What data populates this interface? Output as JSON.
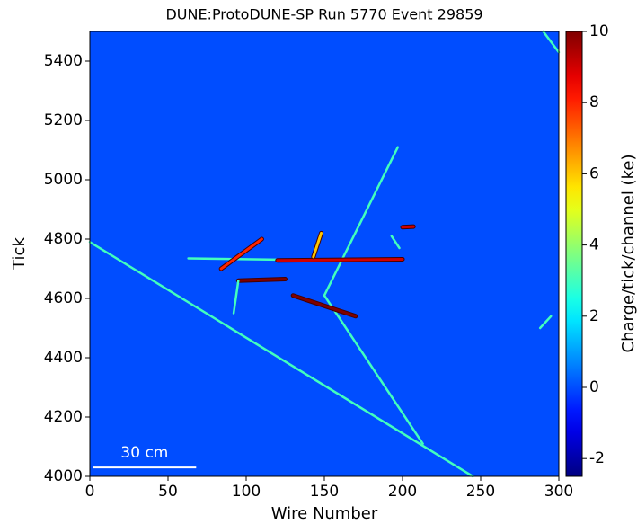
{
  "chart_data": {
    "type": "heatmap",
    "title": "DUNE:ProtoDUNE-SP Run 5770 Event 29859",
    "x_label": "Wire Number",
    "y_label": "Tick",
    "colorbar_label": "Charge/tick/channel (ke)",
    "xlim": [
      0,
      300
    ],
    "xticks": [
      0,
      50,
      100,
      150,
      200,
      250,
      300
    ],
    "ylim": [
      4000,
      5500
    ],
    "yticks": [
      4000,
      4200,
      4400,
      4600,
      4800,
      5000,
      5200,
      5400
    ],
    "clim": [
      -2.5,
      10
    ],
    "cticks": [
      -2,
      0,
      2,
      4,
      6,
      8,
      10
    ],
    "colormap": "jet",
    "background_value": 0,
    "scale_bar": {
      "label": "30 cm",
      "x": [
        2,
        68
      ],
      "y": 4030
    },
    "tracks": [
      {
        "x": [
          0,
          245
        ],
        "y": [
          4790,
          4000
        ],
        "charge": 3
      },
      {
        "x": [
          213,
          150
        ],
        "y": [
          4110,
          4610
        ],
        "charge": 3
      },
      {
        "x": [
          150,
          197
        ],
        "y": [
          4610,
          5110
        ],
        "charge": 3
      },
      {
        "x": [
          63,
          200
        ],
        "y": [
          4735,
          4725
        ],
        "charge": 3
      },
      {
        "x": [
          120,
          200
        ],
        "y": [
          4728,
          4732
        ],
        "charge": 9
      },
      {
        "x": [
          84,
          110
        ],
        "y": [
          4700,
          4800
        ],
        "charge": 8
      },
      {
        "x": [
          95,
          125
        ],
        "y": [
          4660,
          4665
        ],
        "charge": 10
      },
      {
        "x": [
          130,
          170
        ],
        "y": [
          4610,
          4540
        ],
        "charge": 10
      },
      {
        "x": [
          143,
          148
        ],
        "y": [
          4740,
          4820
        ],
        "charge": 6
      },
      {
        "x": [
          95,
          92
        ],
        "y": [
          4660,
          4550
        ],
        "charge": 3
      },
      {
        "x": [
          200,
          207
        ],
        "y": [
          4840,
          4842
        ],
        "charge": 9
      },
      {
        "x": [
          290,
          300
        ],
        "y": [
          5500,
          5430
        ],
        "charge": 3
      },
      {
        "x": [
          288,
          295
        ],
        "y": [
          4500,
          4540
        ],
        "charge": 3
      },
      {
        "x": [
          193,
          198
        ],
        "y": [
          4810,
          4770
        ],
        "charge": 3
      }
    ]
  }
}
